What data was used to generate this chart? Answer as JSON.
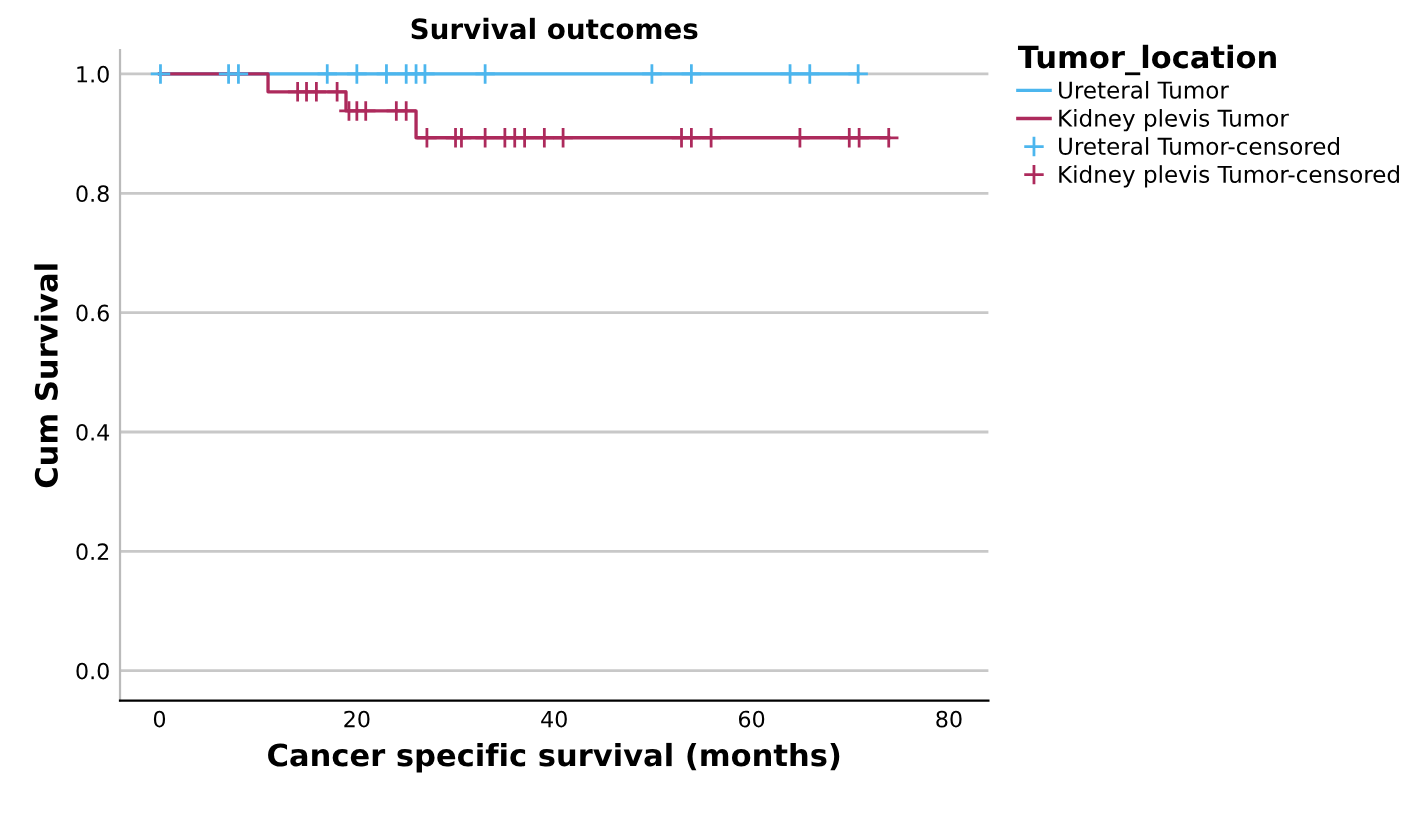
{
  "chart_data": {
    "type": "step",
    "title": "Survival outcomes",
    "xlabel": "Cancer specific survival (months)",
    "ylabel": "Cum Survival",
    "legend_title": "Tumor_location",
    "xlim": [
      -4,
      84
    ],
    "ylim": [
      -0.05,
      1.04
    ],
    "xticks": [
      0,
      20,
      40,
      60,
      80
    ],
    "yticks": [
      {
        "value": 0,
        "label": "0.0"
      },
      {
        "value": 0.2,
        "label": "0.2"
      },
      {
        "value": 0.4,
        "label": "0.4"
      },
      {
        "value": 0.6,
        "label": "0.6"
      },
      {
        "value": 0.8,
        "label": "0.8"
      },
      {
        "value": 1,
        "label": "1.0"
      }
    ],
    "grid": "y",
    "legend": "right",
    "series": [
      {
        "name": "Ureteral Tumor",
        "color": "#4cb6ee",
        "x": [
          0,
          70.8
        ],
        "values": [
          1,
          1
        ]
      },
      {
        "name": "Kidney plevis Tumor",
        "color": "#ad2a5c",
        "x": [
          0,
          11,
          18.9,
          26,
          73.9
        ],
        "values": [
          1,
          0.97,
          0.938,
          0.893,
          0.893
        ]
      },
      {
        "name": "Ureteral Tumor-censored",
        "type": "scatter",
        "marker": "cross",
        "color": "#4cb6ee",
        "x": [
          0.1,
          7,
          8,
          17,
          20,
          23,
          25,
          26,
          26.9,
          33,
          49.9,
          53.9,
          63.9,
          65.9,
          70.8
        ],
        "values": [
          1,
          1,
          1,
          1,
          1,
          1,
          1,
          1,
          1,
          1,
          1,
          1,
          1,
          1,
          1
        ]
      },
      {
        "name": "Kidney plevis Tumor-censored",
        "type": "scatter",
        "marker": "cross",
        "color": "#ad2a5c",
        "x": [
          14,
          14.9,
          15.9,
          18,
          19.2,
          20,
          20.9,
          24,
          25,
          27.1,
          30,
          30.6,
          33,
          35,
          36,
          37,
          39,
          40.9,
          52.9,
          53.9,
          55.9,
          64.9,
          69.9,
          70.9,
          73.9
        ],
        "values": [
          0.97,
          0.97,
          0.97,
          0.97,
          0.938,
          0.938,
          0.938,
          0.938,
          0.938,
          0.893,
          0.893,
          0.893,
          0.893,
          0.893,
          0.893,
          0.893,
          0.893,
          0.893,
          0.893,
          0.893,
          0.893,
          0.893,
          0.893,
          0.893,
          0.893
        ]
      }
    ]
  }
}
